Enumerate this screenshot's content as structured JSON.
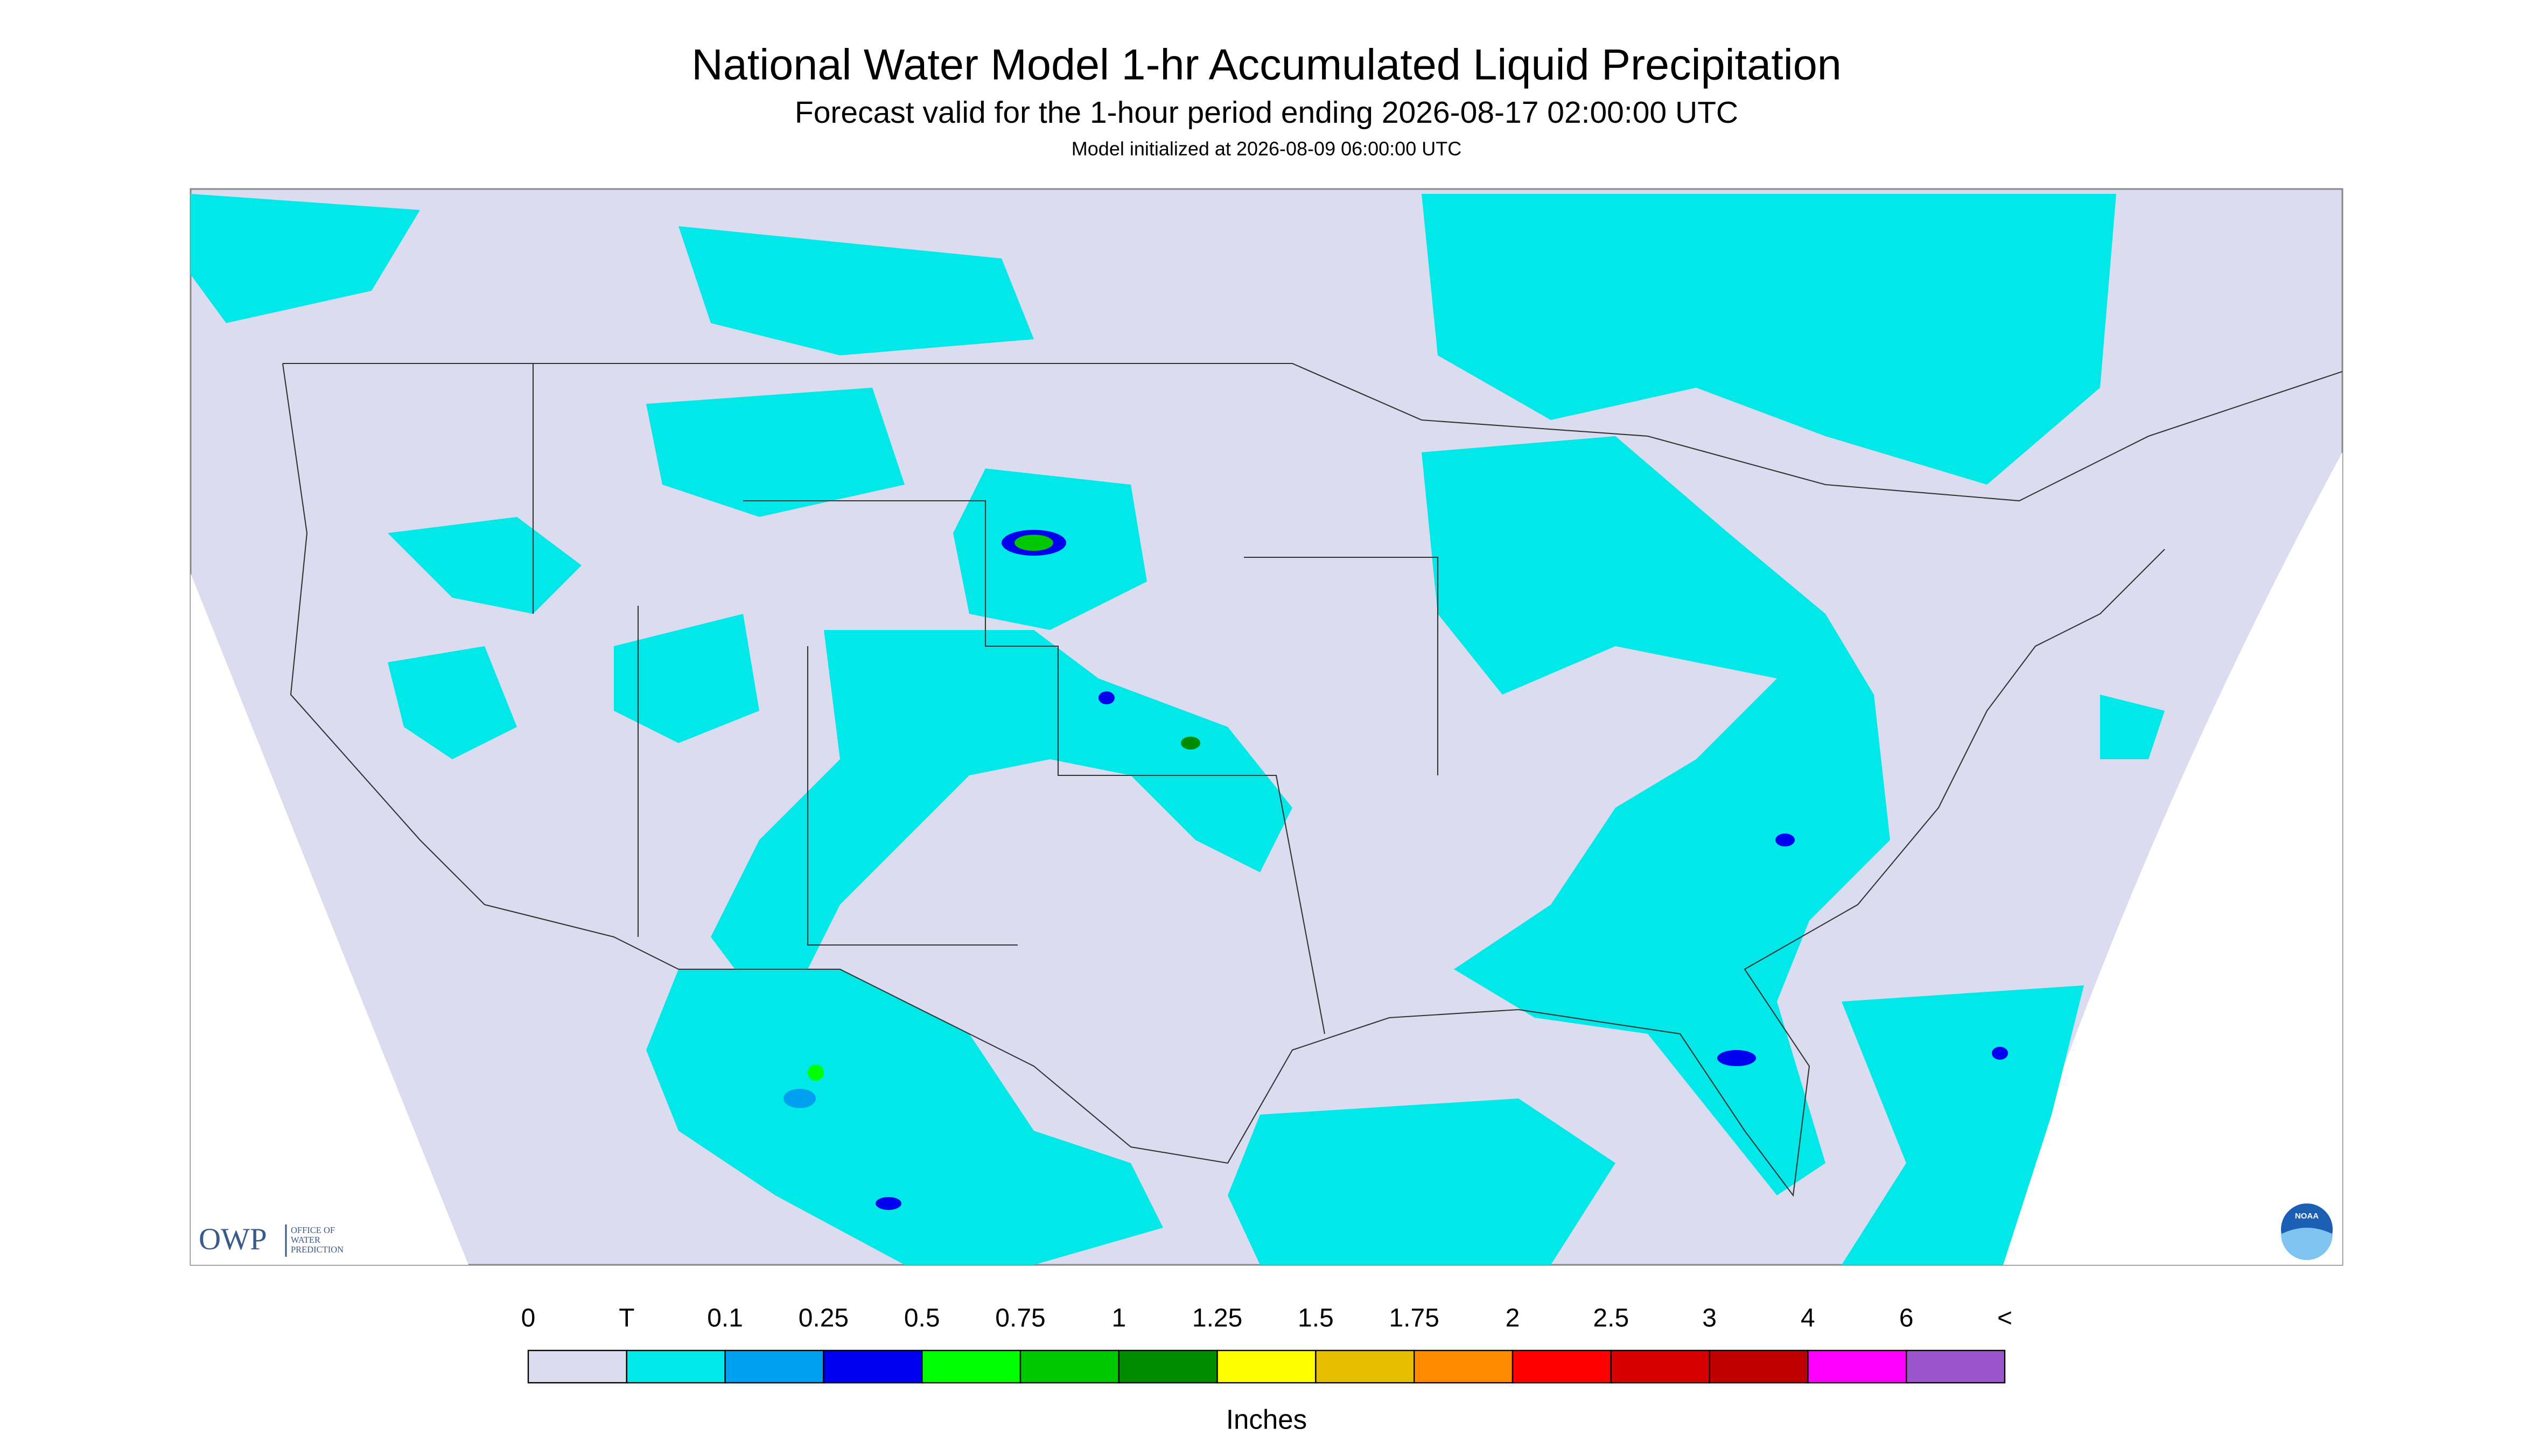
{
  "header": {
    "title": "National Water Model 1-hr Accumulated Liquid Precipitation",
    "subtitle": "Forecast valid for the 1-hour period ending 2026-08-17 02:00:00 UTC",
    "note": "Model initialized at 2026-08-09 06:00:00 UTC"
  },
  "legend": {
    "labels": [
      "0",
      "T",
      "0.1",
      "0.25",
      "0.5",
      "0.75",
      "1",
      "1.25",
      "1.5",
      "1.75",
      "2",
      "2.5",
      "3",
      "4",
      "6",
      "<"
    ],
    "colors": [
      "#dcdcf0",
      "#00e8e8",
      "#00a0f0",
      "#0000f0",
      "#00ff00",
      "#00c800",
      "#008c00",
      "#ffff00",
      "#e6be00",
      "#ff8c00",
      "#ff0000",
      "#d60000",
      "#c00000",
      "#ff00ff",
      "#9955c9"
    ],
    "unit": "Inches"
  },
  "logo": {
    "name": "OWP",
    "lines": [
      "OFFICE OF",
      "WATER",
      "PREDICTION"
    ],
    "badge": "NOAA"
  }
}
